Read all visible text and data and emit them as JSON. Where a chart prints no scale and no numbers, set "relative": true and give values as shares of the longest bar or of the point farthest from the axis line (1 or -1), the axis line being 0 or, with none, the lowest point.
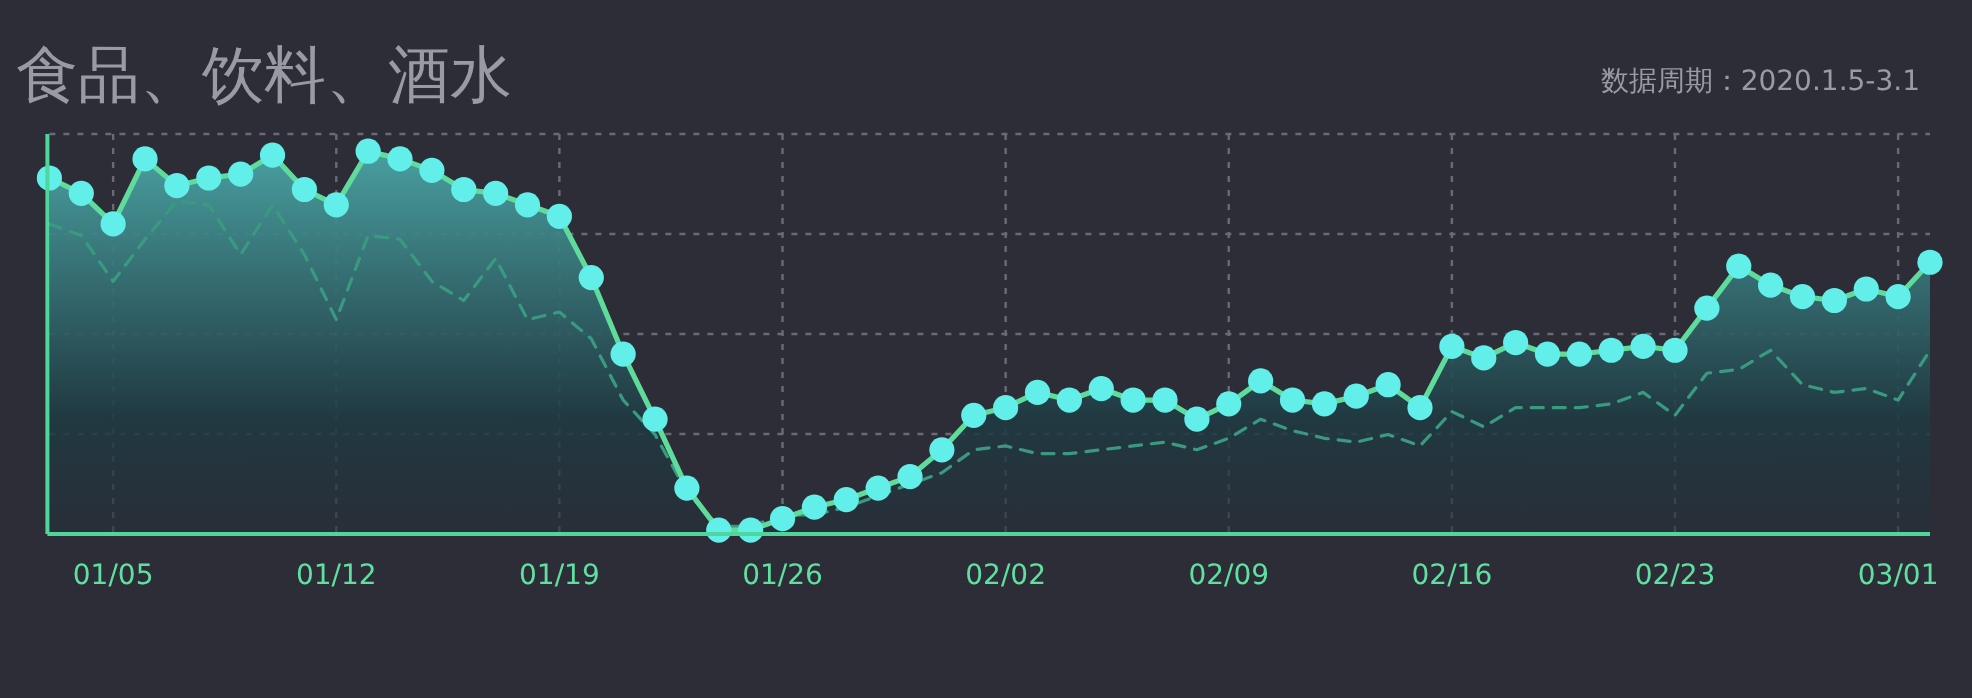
{
  "chart_data": {
    "type": "line",
    "title": "食品、饮料、酒水",
    "annotations": [
      "数据周期：2020.1.5-3.1"
    ],
    "relative": true,
    "grid": true,
    "categories": [
      null,
      null,
      "01/05",
      null,
      null,
      null,
      null,
      null,
      null,
      "01/12",
      null,
      null,
      null,
      null,
      null,
      null,
      "01/19",
      null,
      null,
      null,
      null,
      null,
      null,
      "01/26",
      null,
      null,
      null,
      null,
      null,
      null,
      "02/02",
      null,
      null,
      null,
      null,
      null,
      null,
      "02/09",
      null,
      null,
      null,
      null,
      null,
      null,
      "02/16",
      null,
      null,
      null,
      null,
      null,
      null,
      "02/23",
      null,
      null,
      null,
      null,
      null,
      null,
      "03/01",
      null
    ],
    "series": [
      {
        "type": "area",
        "marker": "circle",
        "line_style": "solid",
        "color": "#62efe9",
        "values": [
          0.93,
          0.89,
          0.81,
          0.98,
          0.91,
          0.93,
          0.94,
          0.99,
          0.9,
          0.86,
          1.0,
          0.98,
          0.95,
          0.9,
          0.89,
          0.86,
          0.83,
          0.67,
          0.47,
          0.3,
          0.12,
          0.01,
          0.01,
          0.04,
          0.07,
          0.09,
          0.12,
          0.15,
          0.22,
          0.31,
          0.33,
          0.37,
          0.35,
          0.38,
          0.35,
          0.35,
          0.3,
          0.34,
          0.4,
          0.35,
          0.34,
          0.36,
          0.39,
          0.33,
          0.49,
          0.46,
          0.5,
          0.47,
          0.47,
          0.48,
          0.49,
          0.48,
          0.59,
          0.7,
          0.65,
          0.62,
          0.61,
          0.64,
          0.62,
          0.71
        ]
      },
      {
        "type": "line",
        "marker": "none",
        "line_style": "dashed",
        "color": "#3a9a80",
        "values": [
          0.81,
          0.78,
          0.66,
          0.77,
          0.87,
          0.86,
          0.73,
          0.86,
          0.73,
          0.56,
          0.78,
          0.77,
          0.66,
          0.61,
          0.72,
          0.56,
          0.58,
          0.51,
          0.35,
          0.26,
          0.11,
          0.02,
          0.02,
          0.05,
          0.05,
          0.07,
          0.1,
          0.13,
          0.16,
          0.22,
          0.23,
          0.21,
          0.21,
          0.22,
          0.23,
          0.24,
          0.22,
          0.25,
          0.3,
          0.27,
          0.25,
          0.24,
          0.26,
          0.23,
          0.32,
          0.28,
          0.33,
          0.33,
          0.33,
          0.34,
          0.37,
          0.31,
          0.42,
          0.43,
          0.48,
          0.39,
          0.37,
          0.38,
          0.35,
          0.48
        ]
      }
    ]
  }
}
